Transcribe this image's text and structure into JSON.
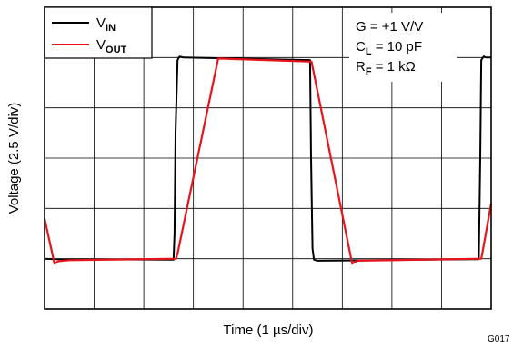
{
  "chart_data": {
    "type": "line",
    "xlabel": "Time (1 µs/div)",
    "ylabel": "Voltage (2.5 V/div)",
    "figure_id": "G017",
    "xlim": [
      0,
      9
    ],
    "ylim": [
      0,
      6
    ],
    "grid": true,
    "legend_position": "top-left",
    "legend": [
      {
        "sym": "V",
        "sub": "IN",
        "color": "#000000"
      },
      {
        "sym": "V",
        "sub": "OUT",
        "color": "#e8141c"
      }
    ],
    "annotations": [
      {
        "pre": "G = +1 V/V",
        "sub": "",
        "post": ""
      },
      {
        "pre": "C",
        "sub": "L",
        "post": " = 10 pF"
      },
      {
        "pre": "R",
        "sub": "F",
        "post": " = 1 kΩ"
      }
    ],
    "series": [
      {
        "color": "#000000",
        "x": [
          0,
          0.22,
          2.6,
          2.62,
          2.64,
          2.68,
          2.72,
          2.8,
          5.35,
          5.37,
          5.4,
          5.43,
          5.5,
          8.75,
          8.78,
          8.8,
          8.85,
          8.9,
          9.0
        ],
        "y": [
          1.0,
          0.99,
          0.98,
          1.5,
          3.5,
          4.95,
          5.02,
          5.0,
          4.95,
          3.0,
          1.2,
          0.98,
          0.96,
          0.99,
          3.0,
          4.95,
          5.02,
          5.0,
          5.0
        ]
      },
      {
        "color": "#e8141c",
        "x": [
          0,
          0.2,
          0.28,
          0.5,
          2.65,
          2.68,
          3.5,
          5.38,
          6.2,
          6.3,
          8.8,
          8.83,
          9.0
        ],
        "y": [
          1.8,
          0.9,
          0.95,
          0.97,
          1.0,
          1.1,
          4.98,
          4.92,
          0.9,
          0.96,
          1.0,
          1.15,
          2.1
        ]
      }
    ]
  }
}
